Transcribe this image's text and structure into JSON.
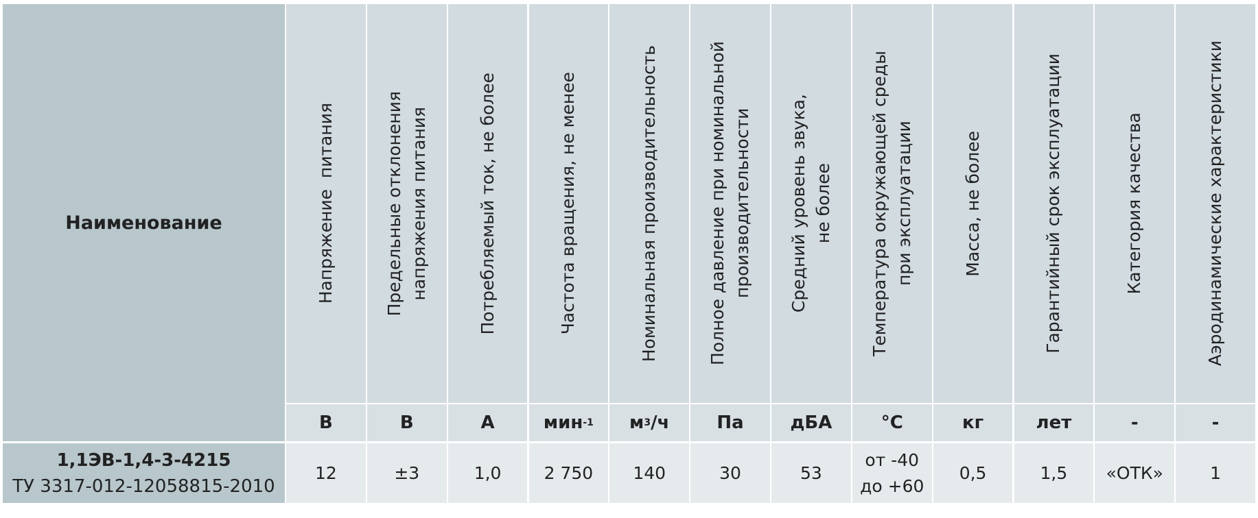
{
  "table": {
    "name_header": "Наименование",
    "headers": [
      [
        "Напряжение  питания"
      ],
      [
        "Предельные отклонения",
        "напряжения питания"
      ],
      [
        "Потребляемый ток, не более"
      ],
      [
        "Частота вращения, не менее"
      ],
      [
        "Номинальная производительность"
      ],
      [
        "Полное давление при номинальной",
        "производительности"
      ],
      [
        "Средний уровень звука,",
        "не более"
      ],
      [
        "Температура окружающей среды",
        "при эксплуатации"
      ],
      [
        "Масса, не более"
      ],
      [
        "Гарантийный срок эксплуатации"
      ],
      [
        "Категория качества"
      ],
      [
        "Аэродинамические характеристики"
      ]
    ],
    "units": [
      {
        "text": "В"
      },
      {
        "text": "В"
      },
      {
        "text": "А"
      },
      {
        "text": "мин",
        "sup": "-1"
      },
      {
        "text": "м",
        "sup": "3",
        "rest": "/ч"
      },
      {
        "text": "Па"
      },
      {
        "text": "дБА"
      },
      {
        "text": "°С"
      },
      {
        "text": "кг"
      },
      {
        "text": "лет"
      },
      {
        "text": "-"
      },
      {
        "text": "-"
      }
    ],
    "row": {
      "name": [
        "1,1ЭВ-1,4-3-4215",
        "ТУ 3317-012-12058815-2010"
      ],
      "values": [
        [
          "12"
        ],
        [
          "±3"
        ],
        [
          "1,0"
        ],
        [
          "2 750"
        ],
        [
          "140"
        ],
        [
          "30"
        ],
        [
          "53"
        ],
        [
          "от -40",
          "до +60"
        ],
        [
          "0,5"
        ],
        [
          "1,5"
        ],
        [
          "«ОТК»"
        ],
        [
          "1"
        ]
      ]
    }
  }
}
